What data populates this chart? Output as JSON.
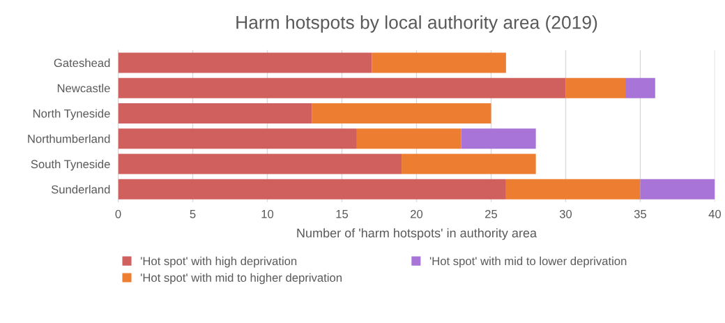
{
  "chart_data": {
    "type": "bar",
    "orientation": "horizontal",
    "stacked": true,
    "title": "Harm hotspots by local authority area (2019)",
    "xlabel": "Number of 'harm hotspots' in authority area",
    "categories": [
      "Gateshead",
      "Newcastle",
      "North Tyneside",
      "Northumberland",
      "South Tyneside",
      "Sunderland"
    ],
    "series": [
      {
        "name": "'Hot spot' with high deprivation",
        "color": "#d0605e",
        "values": [
          17,
          30,
          13,
          16,
          19,
          26
        ]
      },
      {
        "name": "'Hot spot' with mid to higher deprivation",
        "color": "#ed7d31",
        "values": [
          9,
          4,
          12,
          7,
          9,
          9
        ]
      },
      {
        "name": "'Hot spot' with mid to lower deprivation",
        "color": "#a874d8",
        "values": [
          null,
          2,
          null,
          5,
          null,
          5
        ]
      }
    ],
    "xlim": [
      0,
      40
    ],
    "xticks": [
      0,
      5,
      10,
      15,
      20,
      25,
      30,
      35,
      40
    ],
    "grid": "x",
    "legend": "bottom"
  }
}
